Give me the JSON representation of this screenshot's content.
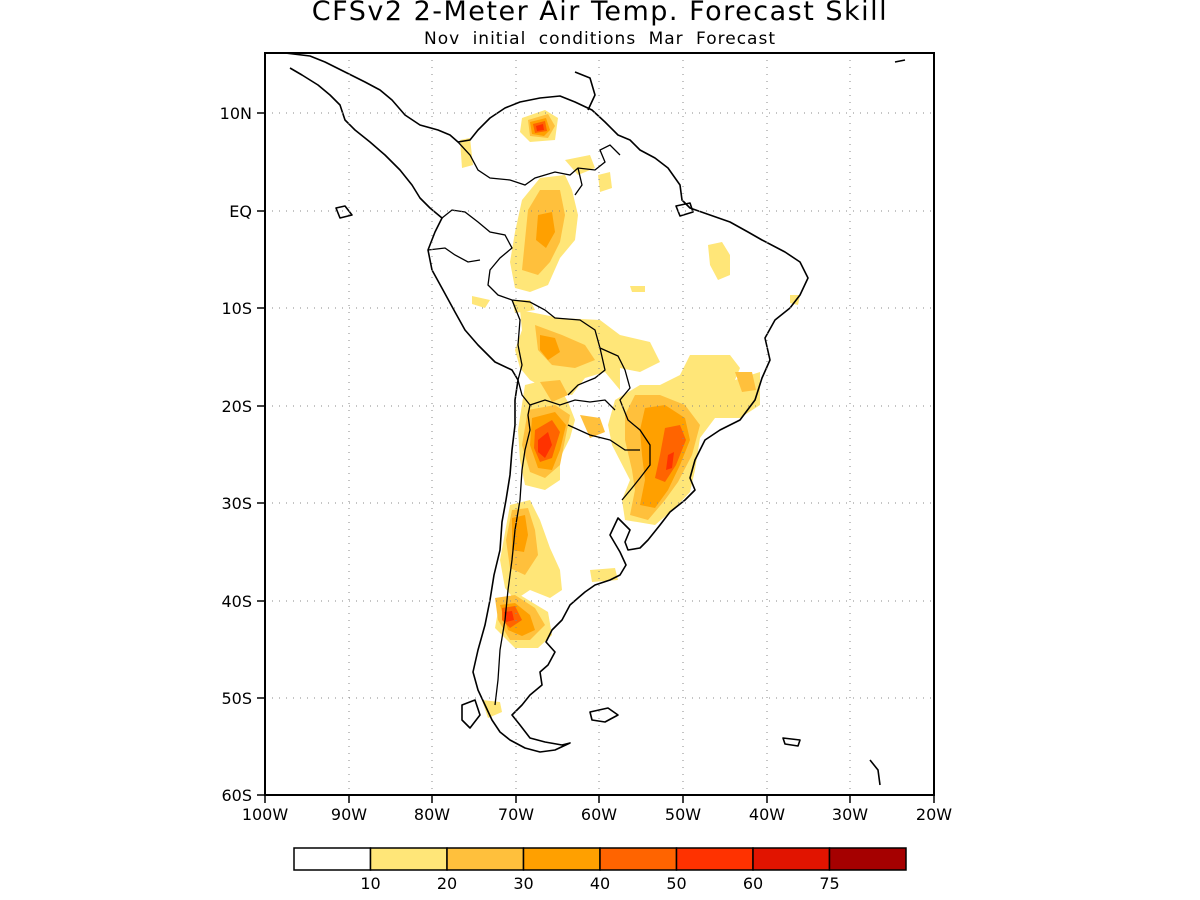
{
  "title": "CFSv2 2-Meter Air Temp. Forecast Skill",
  "subtitle": "Nov initial conditions  Mar Forecast",
  "latitude_labels": [
    "10N",
    "EQ",
    "10S",
    "20S",
    "30S",
    "40S",
    "50S",
    "60S"
  ],
  "longitude_labels": [
    "100W",
    "90W",
    "80W",
    "70W",
    "60W",
    "50W",
    "40W",
    "30W",
    "20W"
  ],
  "legend": {
    "colors": [
      "#ffffff",
      "#ffe678",
      "#ffc03c",
      "#ffa000",
      "#ff6400",
      "#ff3200",
      "#e11400",
      "#a50000"
    ],
    "labels": [
      "10",
      "20",
      "30",
      "40",
      "50",
      "60",
      "75"
    ]
  },
  "colors": {
    "coastline": "#000000",
    "grid": "#888888"
  }
}
